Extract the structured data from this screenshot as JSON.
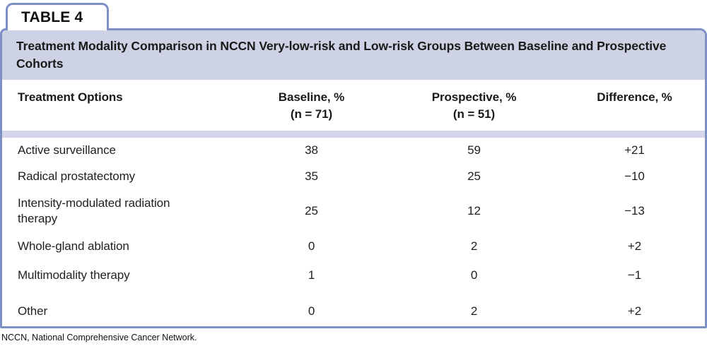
{
  "tab_label": "TABLE 4",
  "title": "Treatment Modality Comparison in NCCN Very-low-risk and Low-risk Groups Between Baseline and Prospective Cohorts",
  "table": {
    "columns": [
      {
        "label": "Treatment Options",
        "sublabel": ""
      },
      {
        "label": "Baseline, %",
        "sublabel": "(n = 71)"
      },
      {
        "label": "Prospective, %",
        "sublabel": "(n = 51)"
      },
      {
        "label": "Difference, %",
        "sublabel": ""
      }
    ],
    "rows": [
      {
        "option": "Active surveillance",
        "baseline": "38",
        "prospective": "59",
        "difference": "+21"
      },
      {
        "option": "Radical prostatectomy",
        "baseline": "35",
        "prospective": "25",
        "difference": "−10"
      },
      {
        "option": "Intensity-modulated radiation therapy",
        "baseline": "25",
        "prospective": "12",
        "difference": "−13"
      },
      {
        "option": "Whole-gland ablation",
        "baseline": "0",
        "prospective": "2",
        "difference": "+2"
      },
      {
        "option": "Multimodality therapy",
        "baseline": "1",
        "prospective": "0",
        "difference": "−1"
      },
      {
        "option": "Other",
        "baseline": "0",
        "prospective": "2",
        "difference": "+2"
      }
    ]
  },
  "footnote": "NCCN, National Comprehensive Cancer Network.",
  "colors": {
    "border_blue": "#7e8fc5",
    "title_band": "#ced2e5",
    "separator_band": "#d3d6e9",
    "text": "#1a1a1a"
  }
}
